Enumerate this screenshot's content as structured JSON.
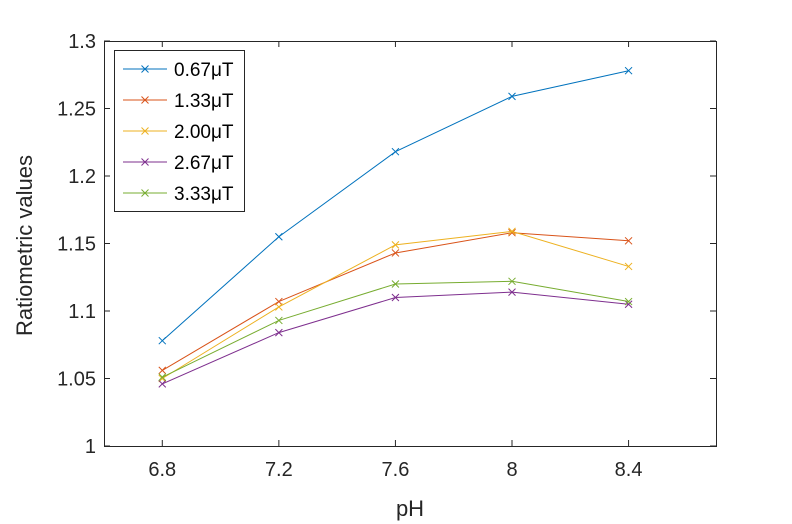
{
  "chart_data": {
    "type": "line",
    "xlabel": "pH",
    "ylabel": "Ratiometric values",
    "x": [
      6.8,
      7.2,
      7.6,
      8,
      8.4
    ],
    "x_tick_labels": [
      "6.8",
      "7.2",
      "7.6",
      "8",
      "8.4"
    ],
    "xlim": [
      6.6,
      8.7
    ],
    "ylim": [
      1,
      1.3
    ],
    "y_ticks": [
      1,
      1.05,
      1.1,
      1.15,
      1.2,
      1.25,
      1.3
    ],
    "y_tick_labels": [
      "1",
      "1.05",
      "1.1",
      "1.15",
      "1.2",
      "1.25",
      "1.3"
    ],
    "grid": false,
    "legend_position": "top-left",
    "marker": "x",
    "series": [
      {
        "name": "0.67μT",
        "color": "#0072BD",
        "values": [
          1.078,
          1.155,
          1.218,
          1.259,
          1.278
        ]
      },
      {
        "name": "1.33μT",
        "color": "#D95319",
        "values": [
          1.056,
          1.107,
          1.143,
          1.158,
          1.152
        ]
      },
      {
        "name": "2.00μT",
        "color": "#EDB120",
        "values": [
          1.05,
          1.103,
          1.149,
          1.159,
          1.133
        ]
      },
      {
        "name": "2.67μT",
        "color": "#7E2F8E",
        "values": [
          1.046,
          1.084,
          1.11,
          1.114,
          1.105
        ]
      },
      {
        "name": "3.33μT",
        "color": "#77AC30",
        "values": [
          1.051,
          1.093,
          1.12,
          1.122,
          1.107
        ]
      }
    ]
  }
}
